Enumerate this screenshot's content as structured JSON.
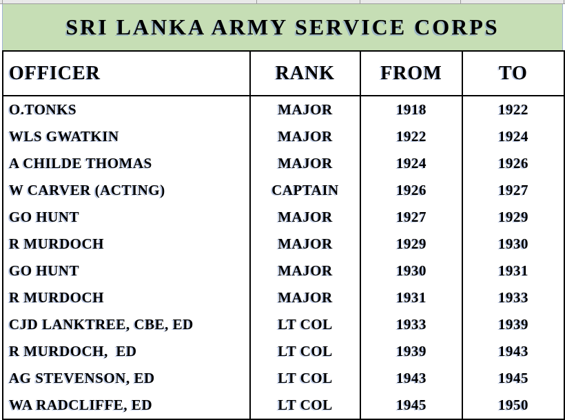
{
  "title_band": {
    "title": "SRI LANKA ARMY SERVICE CORPS",
    "background_color": "#c6deb5",
    "edge_line_color": "#9fb2d4"
  },
  "grid_strip": {
    "background_color": "#e9e9e9",
    "line_color": "#9a9a9a"
  },
  "text_effect": {
    "ink_color": "#000000",
    "shadow_color": "#7a95d0"
  },
  "table": {
    "columns": [
      "OFFICER",
      "RANK",
      "FROM",
      "TO"
    ],
    "rows": [
      [
        "O.TONKS",
        "MAJOR",
        "1918",
        "1922"
      ],
      [
        "WLS GWATKIN",
        "MAJOR",
        "1922",
        "1924"
      ],
      [
        "A CHILDE THOMAS",
        "MAJOR",
        "1924",
        "1926"
      ],
      [
        "W CARVER (ACTING)",
        "CAPTAIN",
        "1926",
        "1927"
      ],
      [
        "GO HUNT",
        "MAJOR",
        "1927",
        "1929"
      ],
      [
        "R MURDOCH",
        "MAJOR",
        "1929",
        "1930"
      ],
      [
        "GO HUNT",
        "MAJOR",
        "1930",
        "1931"
      ],
      [
        "R MURDOCH",
        "MAJOR",
        "1931",
        "1933"
      ],
      [
        "CJD LANKTREE, CBE, ED",
        "LT COL",
        "1933",
        "1939"
      ],
      [
        "R MURDOCH,  ED",
        "LT COL",
        "1939",
        "1943"
      ],
      [
        "AG STEVENSON, ED",
        "LT COL",
        "1943",
        "1945"
      ],
      [
        "WA RADCLIFFE, ED",
        "LT COL",
        "1945",
        "1950"
      ]
    ]
  }
}
